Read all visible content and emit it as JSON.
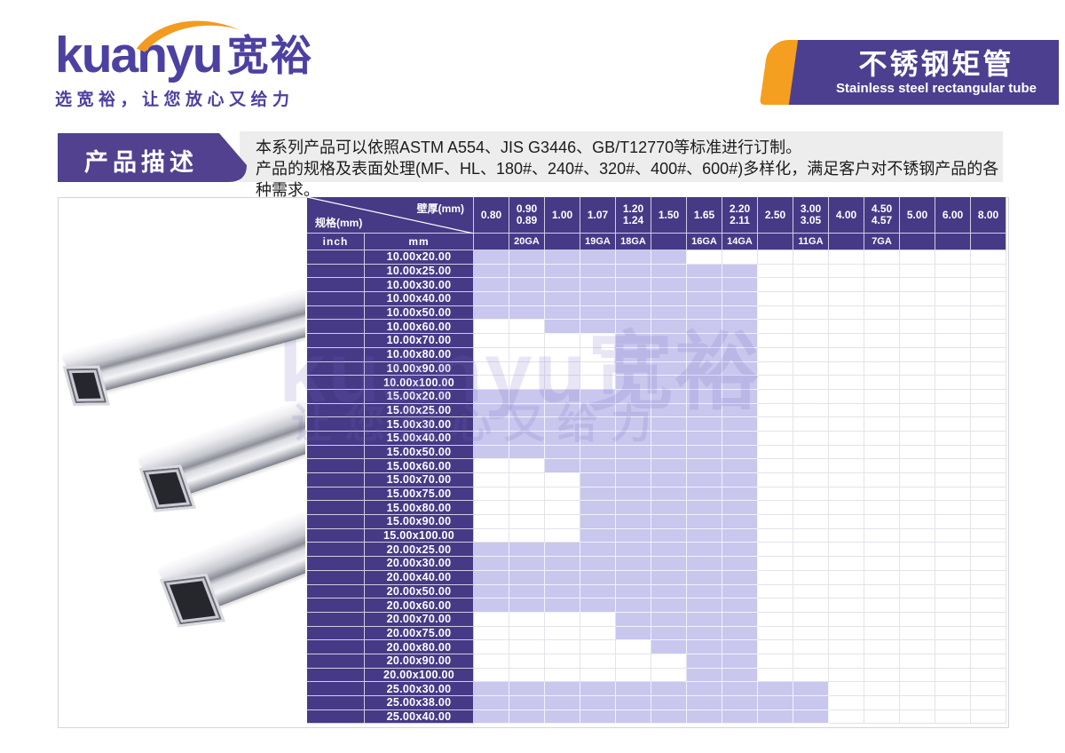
{
  "logo": {
    "brand_latin": "kuanyu",
    "brand_cjk": "宽裕",
    "tagline": "选宽裕，让您放心又给力",
    "swoosh_color": "#f29b1f",
    "brand_color": "#4c41a1"
  },
  "banner": {
    "title": "不锈钢矩管",
    "subtitle": "Stainless steel rectangular tube",
    "purple": "#4c3f90",
    "orange": "#f49f1f"
  },
  "section": {
    "label": "产品描述",
    "description_line1": "本系列产品可以依照ASTM A554、JIS G3446、GB/T12770等标准进行订制。",
    "description_line2": "产品的规格及表面处理(MF、HL、180#、240#、320#、400#、600#)多样化，满足客户对不锈钢产品的各种需求。"
  },
  "watermark": {
    "line1": "kuanyu宽裕",
    "line2": "让您放心又给力"
  },
  "colors": {
    "header_purple": "#463a86",
    "highlight_purple": "#c9c7ee",
    "grid_line": "#e3e3ec"
  },
  "spec_table": {
    "corner": {
      "top_label": "壁厚(mm)",
      "bottom_label": "规格(mm)"
    },
    "subheader": {
      "inch": "inch",
      "mm": "mm"
    },
    "thickness_columns": [
      {
        "lines": [
          "0.80"
        ],
        "ga": ""
      },
      {
        "lines": [
          "0.90",
          "0.89"
        ],
        "ga": "20GA"
      },
      {
        "lines": [
          "1.00"
        ],
        "ga": ""
      },
      {
        "lines": [
          "1.07"
        ],
        "ga": "19GA"
      },
      {
        "lines": [
          "1.20",
          "1.24"
        ],
        "ga": "18GA"
      },
      {
        "lines": [
          "1.50"
        ],
        "ga": ""
      },
      {
        "lines": [
          "1.65"
        ],
        "ga": "16GA"
      },
      {
        "lines": [
          "2.20",
          "2.11"
        ],
        "ga": "14GA"
      },
      {
        "lines": [
          "2.50"
        ],
        "ga": ""
      },
      {
        "lines": [
          "3.00",
          "3.05"
        ],
        "ga": "11GA"
      },
      {
        "lines": [
          "4.00"
        ],
        "ga": ""
      },
      {
        "lines": [
          "4.50",
          "4.57"
        ],
        "ga": "7GA"
      },
      {
        "lines": [
          "5.00"
        ],
        "ga": ""
      },
      {
        "lines": [
          "6.00"
        ],
        "ga": ""
      },
      {
        "lines": [
          "8.00"
        ],
        "ga": ""
      }
    ],
    "rows": [
      {
        "mm": "10.00x20.00",
        "available": [
          1,
          1,
          1,
          1,
          1,
          1,
          0,
          0,
          0,
          0,
          0,
          0,
          0,
          0,
          0
        ]
      },
      {
        "mm": "10.00x25.00",
        "available": [
          1,
          1,
          1,
          1,
          1,
          1,
          1,
          1,
          0,
          0,
          0,
          0,
          0,
          0,
          0
        ]
      },
      {
        "mm": "10.00x30.00",
        "available": [
          1,
          1,
          1,
          1,
          1,
          1,
          1,
          1,
          0,
          0,
          0,
          0,
          0,
          0,
          0
        ]
      },
      {
        "mm": "10.00x40.00",
        "available": [
          1,
          1,
          1,
          1,
          1,
          1,
          1,
          1,
          0,
          0,
          0,
          0,
          0,
          0,
          0
        ]
      },
      {
        "mm": "10.00x50.00",
        "available": [
          1,
          1,
          1,
          1,
          1,
          1,
          1,
          1,
          0,
          0,
          0,
          0,
          0,
          0,
          0
        ]
      },
      {
        "mm": "10.00x60.00",
        "available": [
          0,
          0,
          1,
          1,
          1,
          1,
          1,
          1,
          0,
          0,
          0,
          0,
          0,
          0,
          0
        ]
      },
      {
        "mm": "10.00x70.00",
        "available": [
          0,
          0,
          0,
          0,
          1,
          1,
          1,
          1,
          0,
          0,
          0,
          0,
          0,
          0,
          0
        ]
      },
      {
        "mm": "10.00x80.00",
        "available": [
          0,
          0,
          0,
          0,
          1,
          1,
          1,
          1,
          0,
          0,
          0,
          0,
          0,
          0,
          0
        ]
      },
      {
        "mm": "10.00x90.00",
        "available": [
          0,
          0,
          0,
          0,
          1,
          1,
          1,
          1,
          0,
          0,
          0,
          0,
          0,
          0,
          0
        ]
      },
      {
        "mm": "10.00x100.00",
        "available": [
          0,
          0,
          0,
          0,
          1,
          1,
          1,
          1,
          0,
          0,
          0,
          0,
          0,
          0,
          0
        ]
      },
      {
        "mm": "15.00x20.00",
        "available": [
          1,
          1,
          1,
          1,
          1,
          1,
          1,
          1,
          0,
          0,
          0,
          0,
          0,
          0,
          0
        ]
      },
      {
        "mm": "15.00x25.00",
        "available": [
          1,
          1,
          1,
          1,
          1,
          1,
          1,
          1,
          0,
          0,
          0,
          0,
          0,
          0,
          0
        ]
      },
      {
        "mm": "15.00x30.00",
        "available": [
          1,
          1,
          1,
          1,
          1,
          1,
          1,
          1,
          0,
          0,
          0,
          0,
          0,
          0,
          0
        ]
      },
      {
        "mm": "15.00x40.00",
        "available": [
          1,
          1,
          1,
          1,
          1,
          1,
          1,
          1,
          0,
          0,
          0,
          0,
          0,
          0,
          0
        ]
      },
      {
        "mm": "15.00x50.00",
        "available": [
          1,
          1,
          1,
          1,
          1,
          1,
          1,
          1,
          0,
          0,
          0,
          0,
          0,
          0,
          0
        ]
      },
      {
        "mm": "15.00x60.00",
        "available": [
          0,
          0,
          1,
          1,
          1,
          1,
          1,
          1,
          0,
          0,
          0,
          0,
          0,
          0,
          0
        ]
      },
      {
        "mm": "15.00x70.00",
        "available": [
          0,
          0,
          0,
          1,
          1,
          1,
          1,
          1,
          0,
          0,
          0,
          0,
          0,
          0,
          0
        ]
      },
      {
        "mm": "15.00x75.00",
        "available": [
          0,
          0,
          0,
          1,
          1,
          1,
          1,
          1,
          0,
          0,
          0,
          0,
          0,
          0,
          0
        ]
      },
      {
        "mm": "15.00x80.00",
        "available": [
          0,
          0,
          0,
          1,
          1,
          1,
          1,
          1,
          0,
          0,
          0,
          0,
          0,
          0,
          0
        ]
      },
      {
        "mm": "15.00x90.00",
        "available": [
          0,
          0,
          0,
          1,
          1,
          1,
          1,
          1,
          0,
          0,
          0,
          0,
          0,
          0,
          0
        ]
      },
      {
        "mm": "15.00x100.00",
        "available": [
          0,
          0,
          0,
          1,
          1,
          1,
          1,
          1,
          0,
          0,
          0,
          0,
          0,
          0,
          0
        ]
      },
      {
        "mm": "20.00x25.00",
        "available": [
          1,
          1,
          1,
          1,
          1,
          1,
          1,
          1,
          0,
          0,
          0,
          0,
          0,
          0,
          0
        ]
      },
      {
        "mm": "20.00x30.00",
        "available": [
          1,
          1,
          1,
          1,
          1,
          1,
          1,
          1,
          0,
          0,
          0,
          0,
          0,
          0,
          0
        ]
      },
      {
        "mm": "20.00x40.00",
        "available": [
          1,
          1,
          1,
          1,
          1,
          1,
          1,
          1,
          0,
          0,
          0,
          0,
          0,
          0,
          0
        ]
      },
      {
        "mm": "20.00x50.00",
        "available": [
          1,
          1,
          1,
          1,
          1,
          1,
          1,
          1,
          0,
          0,
          0,
          0,
          0,
          0,
          0
        ]
      },
      {
        "mm": "20.00x60.00",
        "available": [
          1,
          1,
          1,
          1,
          1,
          1,
          1,
          1,
          0,
          0,
          0,
          0,
          0,
          0,
          0
        ]
      },
      {
        "mm": "20.00x70.00",
        "available": [
          0,
          0,
          0,
          0,
          1,
          1,
          1,
          1,
          0,
          0,
          0,
          0,
          0,
          0,
          0
        ]
      },
      {
        "mm": "20.00x75.00",
        "available": [
          0,
          0,
          0,
          0,
          1,
          1,
          1,
          1,
          0,
          0,
          0,
          0,
          0,
          0,
          0
        ]
      },
      {
        "mm": "20.00x80.00",
        "available": [
          0,
          0,
          0,
          0,
          0,
          1,
          1,
          1,
          0,
          0,
          0,
          0,
          0,
          0,
          0
        ]
      },
      {
        "mm": "20.00x90.00",
        "available": [
          0,
          0,
          0,
          0,
          0,
          0,
          1,
          1,
          0,
          0,
          0,
          0,
          0,
          0,
          0
        ]
      },
      {
        "mm": "20.00x100.00",
        "available": [
          0,
          0,
          0,
          0,
          0,
          0,
          1,
          1,
          0,
          0,
          0,
          0,
          0,
          0,
          0
        ]
      },
      {
        "mm": "25.00x30.00",
        "available": [
          1,
          1,
          1,
          1,
          1,
          1,
          1,
          1,
          1,
          1,
          0,
          0,
          0,
          0,
          0
        ]
      },
      {
        "mm": "25.00x38.00",
        "available": [
          1,
          1,
          1,
          1,
          1,
          1,
          1,
          1,
          1,
          1,
          0,
          0,
          0,
          0,
          0
        ]
      },
      {
        "mm": "25.00x40.00",
        "available": [
          1,
          1,
          1,
          1,
          1,
          1,
          1,
          1,
          1,
          1,
          0,
          0,
          0,
          0,
          0
        ]
      }
    ]
  }
}
